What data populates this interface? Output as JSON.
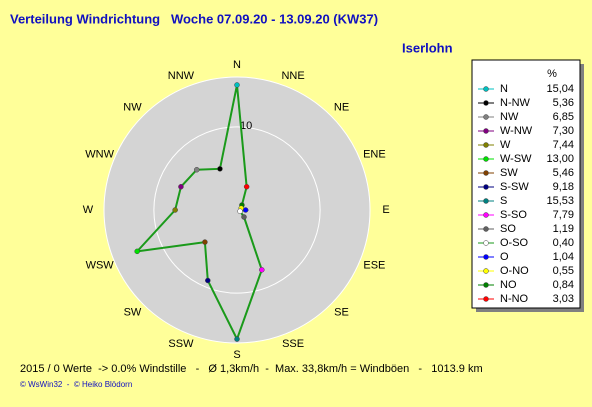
{
  "chart_data": {
    "type": "radar",
    "title": "Verteilung Windrichtung   Woche 07.09.20 - 13.09.20 (KW37)",
    "subtitle": "Iserlohn",
    "categories": [
      "N",
      "NNE",
      "NE",
      "ENE",
      "E",
      "ESE",
      "SE",
      "SSE",
      "S",
      "SSW",
      "SW",
      "WSW",
      "W",
      "WNW",
      "NW",
      "NNW"
    ],
    "legend_names": [
      "N",
      "N-NO",
      "NO",
      "O-NO",
      "O",
      "O-SO",
      "SO",
      "S-SO",
      "S",
      "S-SW",
      "SW",
      "W-SW",
      "W",
      "W-NW",
      "NW",
      "N-NW"
    ],
    "values": [
      15.04,
      3.03,
      0.84,
      0.55,
      1.04,
      0.4,
      1.19,
      7.79,
      15.53,
      9.18,
      5.46,
      13.0,
      7.44,
      7.3,
      6.85,
      5.36
    ],
    "value_labels": [
      "15,04",
      "3,03",
      "0,84",
      "0,55",
      "1,04",
      "0,40",
      "1,19",
      "7,79",
      "15,53",
      "9,18",
      "5,46",
      "13,00",
      "7,44",
      "7,30",
      "6,85",
      "5,36"
    ],
    "colors": [
      "#00c0c0",
      "#ff0000",
      "#008000",
      "#ffff00",
      "#0000ff",
      "#ffffff",
      "#606060",
      "#ff00ff",
      "#008080",
      "#000080",
      "#804000",
      "#00e000",
      "#808000",
      "#800080",
      "#808080",
      "#000000"
    ],
    "line_color": "#1a9a1a",
    "rlim": [
      0,
      16
    ],
    "rticks": [
      10
    ],
    "legend_title": "%",
    "footer": "2015 / 0 Werte  -> 0.0% Windstille   -   Ø 1,3km/h  -  Max. 33,8km/h = Windböen   -   1013.9 km",
    "credits": "© WsWin32  -  © Heiko Blödorn"
  }
}
